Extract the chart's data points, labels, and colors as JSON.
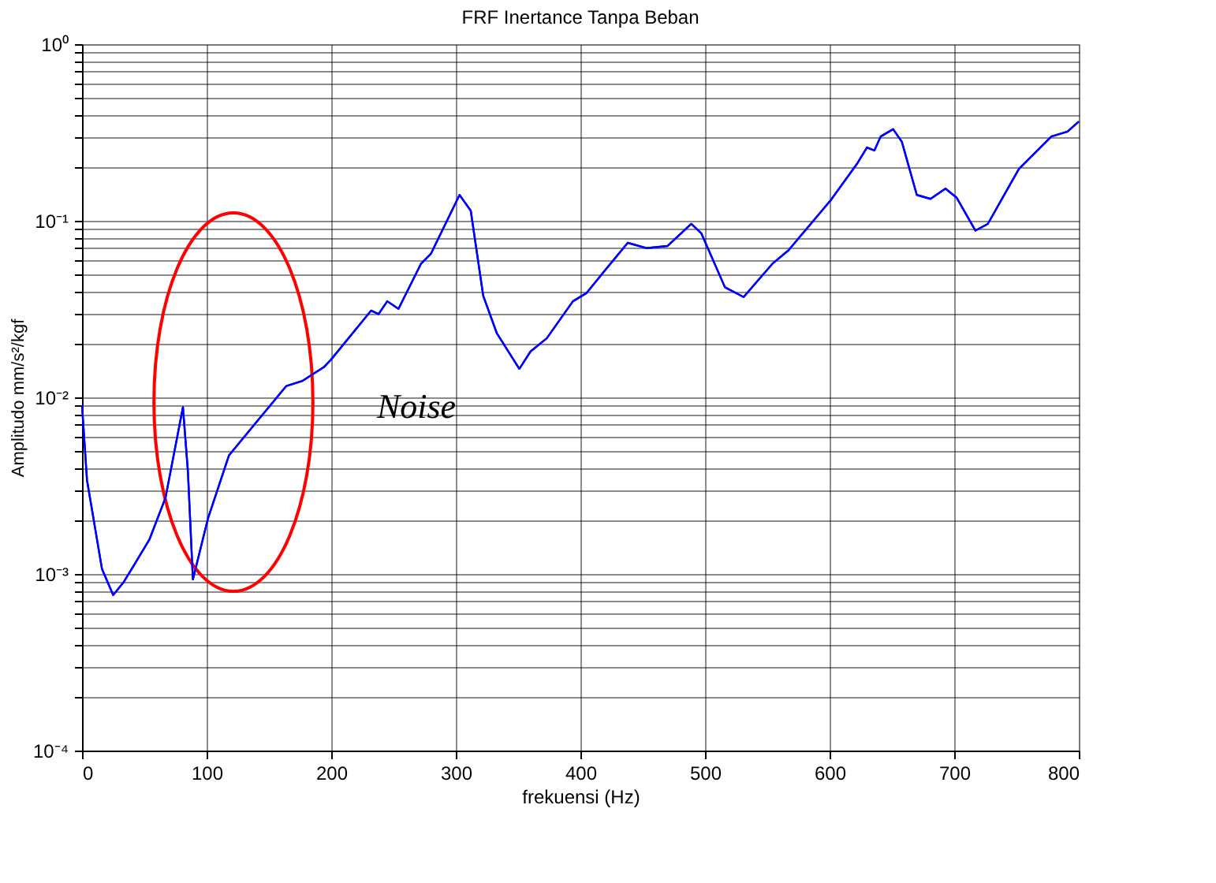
{
  "chart_data": {
    "type": "line",
    "title": "FRF Inertance Tanpa Beban",
    "xlabel": "frekuensi (Hz)",
    "ylabel": "Amplitudo mm/s²/kgf",
    "x": [
      0,
      4,
      16,
      25,
      33,
      40,
      54,
      67,
      81,
      85,
      89,
      101,
      118,
      139,
      164,
      177,
      194,
      200,
      232,
      238,
      245,
      254,
      272,
      280,
      303,
      312,
      322,
      333,
      351,
      360,
      373,
      394,
      405,
      417,
      438,
      453,
      470,
      489,
      497,
      516,
      531,
      554,
      567,
      601,
      622,
      630,
      636,
      641,
      651,
      658,
      670,
      681,
      693,
      702,
      717,
      727,
      752,
      778,
      791,
      800
    ],
    "series": [
      {
        "color": "#0000ff",
        "values": [
          0.009,
          0.0034,
          0.00107,
          0.00076,
          0.00089,
          0.00107,
          0.00156,
          0.0027,
          0.0088,
          0.0038,
          0.00093,
          0.00205,
          0.0047,
          0.0071,
          0.0116,
          0.0124,
          0.0148,
          0.0164,
          0.031,
          0.0296,
          0.035,
          0.0317,
          0.057,
          0.065,
          0.14,
          0.114,
          0.0376,
          0.023,
          0.0145,
          0.0182,
          0.0216,
          0.035,
          0.039,
          0.0496,
          0.075,
          0.07,
          0.072,
          0.096,
          0.085,
          0.042,
          0.037,
          0.057,
          0.068,
          0.131,
          0.21,
          0.26,
          0.25,
          0.3,
          0.33,
          0.28,
          0.14,
          0.133,
          0.152,
          0.135,
          0.088,
          0.096,
          0.197,
          0.3,
          0.32,
          0.365
        ]
      }
    ],
    "log": "y",
    "grid": true,
    "legend": false,
    "marker": "none",
    "line_style": "solid",
    "xlim": [
      0,
      800
    ],
    "xticks": [
      0,
      100,
      200,
      300,
      400,
      500,
      600,
      700,
      800
    ],
    "ylim": [
      0.0001,
      1
    ],
    "yticks": [
      {
        "value": 0.0001,
        "label": "10⁻⁴"
      },
      {
        "value": 0.0002,
        "label": null
      },
      {
        "value": 0.0003,
        "label": null
      },
      {
        "value": 0.0004,
        "label": null
      },
      {
        "value": 0.0005,
        "label": null
      },
      {
        "value": 0.0006,
        "label": null
      },
      {
        "value": 0.0007,
        "label": null
      },
      {
        "value": 0.0008,
        "label": null
      },
      {
        "value": 0.0009,
        "label": null
      },
      {
        "value": 0.001,
        "label": "10⁻³"
      },
      {
        "value": 0.002,
        "label": null
      },
      {
        "value": 0.003,
        "label": null
      },
      {
        "value": 0.004,
        "label": null
      },
      {
        "value": 0.005,
        "label": null
      },
      {
        "value": 0.006,
        "label": null
      },
      {
        "value": 0.007,
        "label": null
      },
      {
        "value": 0.008,
        "label": null
      },
      {
        "value": 0.009,
        "label": null
      },
      {
        "value": 0.01,
        "label": "10⁻²"
      },
      {
        "value": 0.02,
        "label": null
      },
      {
        "value": 0.03,
        "label": null
      },
      {
        "value": 0.04,
        "label": null
      },
      {
        "value": 0.05,
        "label": null
      },
      {
        "value": 0.06,
        "label": null
      },
      {
        "value": 0.07,
        "label": null
      },
      {
        "value": 0.08,
        "label": null
      },
      {
        "value": 0.09,
        "label": null
      },
      {
        "value": 0.1,
        "label": "10⁻¹"
      },
      {
        "value": 0.2,
        "label": null
      },
      {
        "value": 0.3,
        "label": null
      },
      {
        "value": 0.4,
        "label": null
      },
      {
        "value": 0.5,
        "label": null
      },
      {
        "value": 0.6,
        "label": null
      },
      {
        "value": 0.7,
        "label": null
      },
      {
        "value": 0.8,
        "label": null
      },
      {
        "value": 0.9,
        "label": null
      },
      {
        "value": 1,
        "label": "10⁰"
      }
    ],
    "annotations": [
      "Noise"
    ]
  }
}
